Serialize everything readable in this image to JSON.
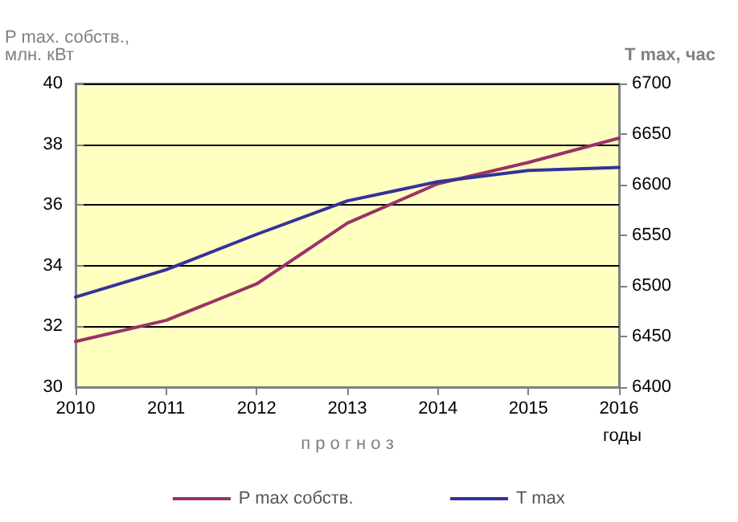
{
  "chart_data": {
    "type": "line",
    "ylabel": "P max. собств.,\nмлн. кВт",
    "y2label": "T max, час",
    "xlabel": "п р о г н о з",
    "annotations": [
      "годы"
    ],
    "categories": [
      "2010",
      "2011",
      "2012",
      "2013",
      "2014",
      "2015",
      "2016"
    ],
    "series": [
      {
        "name": "P max собств.",
        "color": "#993366",
        "values": [
          31.5,
          32.2,
          33.4,
          35.4,
          36.7,
          37.4,
          38.2
        ]
      },
      {
        "name": "T max",
        "color": "#333399",
        "axis": "y2",
        "values": [
          6489,
          6516,
          6551,
          6584,
          6603,
          6614,
          6617
        ]
      }
    ],
    "ylim": [
      30,
      40
    ],
    "yticks": [
      30,
      32,
      34,
      36,
      38,
      40
    ],
    "y2lim": [
      6400,
      6700
    ],
    "y2ticks": [
      6400,
      6450,
      6500,
      6550,
      6600,
      6650,
      6700
    ],
    "grid": "y",
    "legend": "bottom",
    "marker": "none",
    "line_style": "solid"
  }
}
